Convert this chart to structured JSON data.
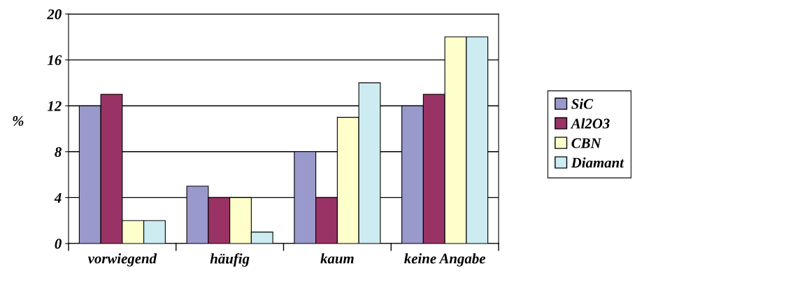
{
  "chart_data": {
    "type": "bar",
    "ylabel": "%",
    "categories": [
      "vorwiegend",
      "häufig",
      "kaum",
      "keine Angabe"
    ],
    "series": [
      {
        "name": "SiC",
        "color": "#9999cc",
        "values": [
          12,
          5,
          8,
          12
        ]
      },
      {
        "name": "Al2O3",
        "color": "#993366",
        "values": [
          13,
          4,
          4,
          13
        ]
      },
      {
        "name": "CBN",
        "color": "#ffffcc",
        "values": [
          2,
          4,
          11,
          18
        ]
      },
      {
        "name": "Diamant",
        "color": "#ccecf2",
        "values": [
          2,
          1,
          14,
          18
        ]
      }
    ],
    "ylim": [
      0,
      20
    ],
    "yticks": [
      0,
      4,
      8,
      12,
      16,
      20
    ],
    "grid": "y",
    "legend": "right"
  }
}
